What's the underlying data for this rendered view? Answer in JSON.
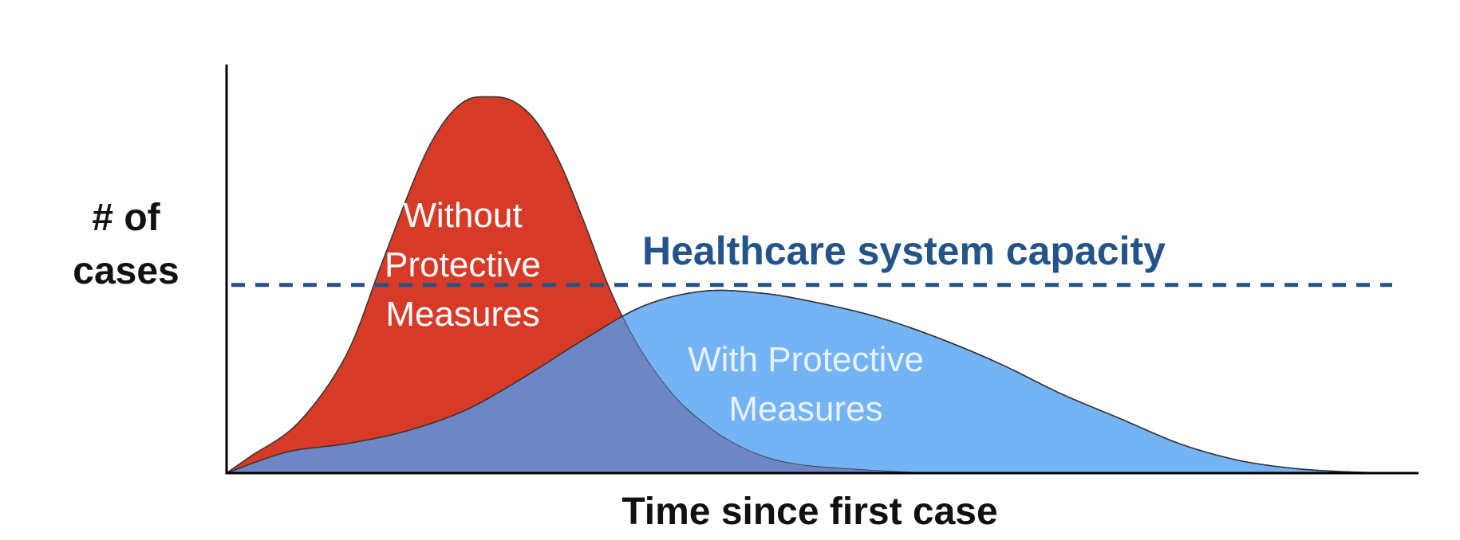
{
  "chart_data": {
    "type": "area",
    "title": "",
    "xlabel": "Time since first case",
    "ylabel": "# of cases",
    "ylabel_lines": [
      "# of",
      "cases"
    ],
    "xlim": [
      0,
      100
    ],
    "ylim": [
      0,
      100
    ],
    "grid": false,
    "legend": "none",
    "capacity_line": {
      "label": "Healthcare system capacity",
      "value": 45,
      "color": "#245487",
      "style": "dashed"
    },
    "series": [
      {
        "name": "Without Protective Measures",
        "label_lines": [
          "Without",
          "Protective",
          "Measures"
        ],
        "color": "#d73a27",
        "label_color": "#ffffff",
        "x": [
          0,
          2,
          6,
          10,
          13,
          16,
          18,
          20,
          22,
          24,
          26,
          28,
          30,
          32,
          34,
          36,
          38,
          40,
          42,
          45,
          48,
          52,
          57,
          60
        ],
        "y": [
          0,
          4,
          12,
          28,
          50,
          72,
          83,
          89,
          90,
          89,
          84,
          74,
          60,
          45,
          33,
          24,
          17,
          12,
          8,
          4,
          2,
          1,
          0.2,
          0
        ]
      },
      {
        "name": "With Protective Measures",
        "label_lines": [
          "With Protective",
          "Measures"
        ],
        "color": "#74b4f5",
        "label_color": "#e8f1fc",
        "x": [
          0,
          5,
          10,
          15,
          20,
          25,
          30,
          35,
          40,
          45,
          50,
          55,
          60,
          65,
          70,
          75,
          80,
          85,
          90,
          95,
          100
        ],
        "y": [
          0,
          5,
          7,
          10,
          15,
          23,
          32,
          40,
          43.5,
          43,
          40.5,
          37,
          32,
          26,
          19,
          13,
          7,
          3,
          1,
          0.2,
          0
        ]
      }
    ]
  }
}
